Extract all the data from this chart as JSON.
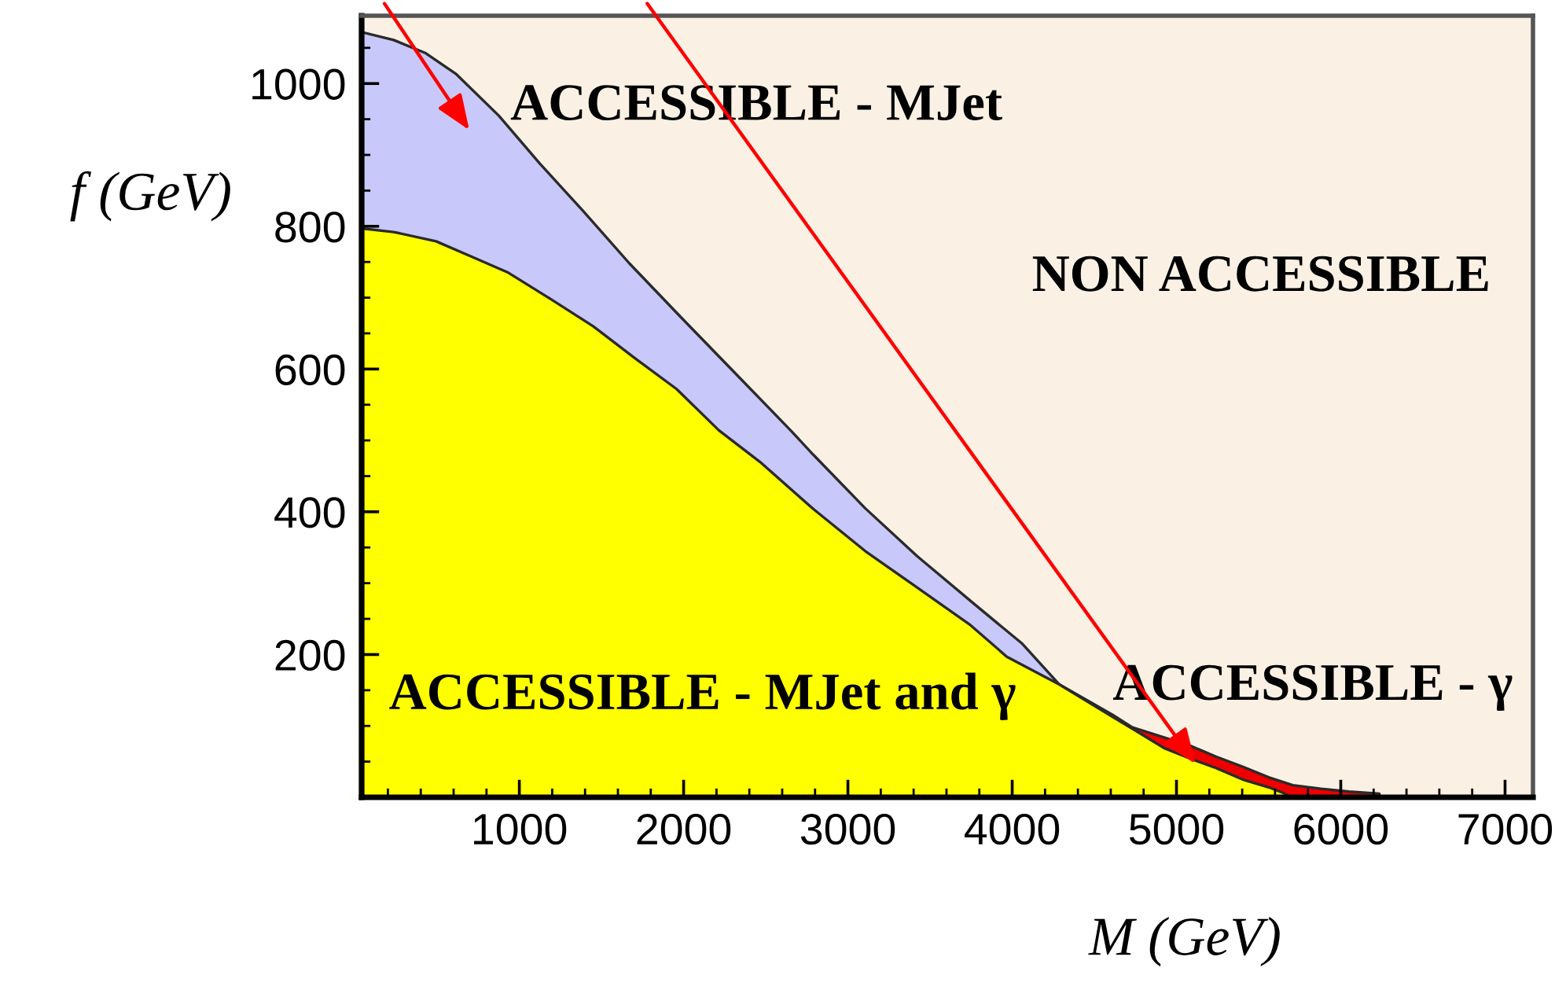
{
  "chart_data": {
    "type": "area",
    "xlabel": "M (GeV)",
    "ylabel": "f (GeV)",
    "xlim": [
      40,
      7170
    ],
    "ylim": [
      0,
      1095
    ],
    "xticks": [
      {
        "value": 200,
        "label": null
      },
      {
        "value": 400,
        "label": null
      },
      {
        "value": 600,
        "label": null
      },
      {
        "value": 800,
        "label": null
      },
      1000,
      {
        "value": 1200,
        "label": null
      },
      {
        "value": 1400,
        "label": null
      },
      {
        "value": 1600,
        "label": null
      },
      {
        "value": 1800,
        "label": null
      },
      2000,
      {
        "value": 2200,
        "label": null
      },
      {
        "value": 2400,
        "label": null
      },
      {
        "value": 2600,
        "label": null
      },
      {
        "value": 2800,
        "label": null
      },
      3000,
      {
        "value": 3200,
        "label": null
      },
      {
        "value": 3400,
        "label": null
      },
      {
        "value": 3600,
        "label": null
      },
      {
        "value": 3800,
        "label": null
      },
      4000,
      {
        "value": 4200,
        "label": null
      },
      {
        "value": 4400,
        "label": null
      },
      {
        "value": 4600,
        "label": null
      },
      {
        "value": 4800,
        "label": null
      },
      5000,
      {
        "value": 5200,
        "label": null
      },
      {
        "value": 5400,
        "label": null
      },
      {
        "value": 5600,
        "label": null
      },
      {
        "value": 5800,
        "label": null
      },
      6000,
      {
        "value": 6200,
        "label": null
      },
      {
        "value": 6400,
        "label": null
      },
      {
        "value": 6600,
        "label": null
      },
      {
        "value": 6800,
        "label": null
      },
      7000
    ],
    "yticks": [
      {
        "value": 50,
        "label": null
      },
      {
        "value": 100,
        "label": null
      },
      {
        "value": 150,
        "label": null
      },
      200,
      {
        "value": 250,
        "label": null
      },
      {
        "value": 300,
        "label": null
      },
      {
        "value": 350,
        "label": null
      },
      400,
      {
        "value": 450,
        "label": null
      },
      {
        "value": 500,
        "label": null
      },
      {
        "value": 550,
        "label": null
      },
      600,
      {
        "value": 650,
        "label": null
      },
      {
        "value": 700,
        "label": null
      },
      {
        "value": 750,
        "label": null
      },
      800,
      {
        "value": 850,
        "label": null
      },
      {
        "value": 900,
        "label": null
      },
      {
        "value": 950,
        "label": null
      },
      1000,
      {
        "value": 1050,
        "label": null
      }
    ],
    "series": [
      {
        "name": "ACCESSIBLE - MJet",
        "color": "#c8c8fa",
        "x": [
          40,
          235,
          426,
          617,
          875,
          1124,
          1382,
          1670,
          1986,
          2340,
          2656,
          2789,
          3105,
          3421,
          3747,
          4062,
          4287
        ],
        "values": [
          1072,
          1061,
          1043,
          1013,
          955,
          888,
          823,
          748,
          672,
          588,
          513,
          480,
          405,
          338,
          275,
          215,
          158
        ]
      },
      {
        "name": "ACCESSIBLE - γ",
        "color": "#ee0000",
        "x": [
          4287,
          4608,
          4732,
          4924,
          5086,
          5240,
          5402,
          5561,
          5708,
          5880,
          6050,
          6235
        ],
        "values": [
          158,
          116,
          98,
          84,
          72,
          57,
          43,
          28,
          17,
          12,
          8,
          5
        ]
      },
      {
        "name": "ACCESSIBLE - MJet and γ",
        "color": "#ffff00",
        "x": [
          40,
          235,
          493,
          713,
          933,
          1191,
          1449,
          1699,
          1957,
          2215,
          2464,
          2789,
          3105,
          3421,
          3747,
          3967,
          4287,
          4608,
          4761,
          4924,
          5086,
          5240,
          5402,
          5561,
          5650,
          5700
        ],
        "values": [
          797,
          792,
          779,
          757,
          735,
          698,
          660,
          616,
          572,
          514,
          470,
          404,
          345,
          294,
          241,
          197,
          158,
          113,
          92,
          69,
          54,
          41,
          25,
          14,
          6,
          0
        ]
      }
    ],
    "annotations": [
      "NON ACCESSIBLE"
    ]
  }
}
